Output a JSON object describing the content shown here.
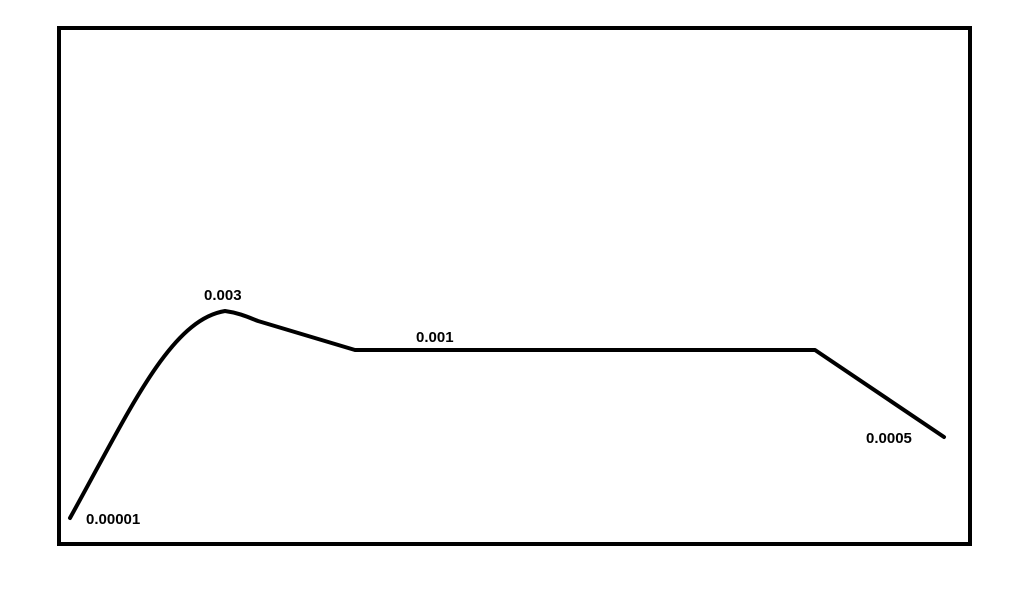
{
  "chart_data": {
    "type": "line",
    "title": "",
    "xlabel": "",
    "ylabel": "",
    "grid": false,
    "legend": "none",
    "line_color": "#000000",
    "frame_color": "#000000",
    "points": [
      {
        "label": "0.00001",
        "value": 1e-05
      },
      {
        "label": "0.003",
        "value": 0.003
      },
      {
        "label": "0.001",
        "value": 0.001
      },
      {
        "label": "0.001",
        "value": 0.001
      },
      {
        "label": "0.0005",
        "value": 0.0005
      }
    ],
    "data_labels": [
      "0.00001",
      "0.003",
      "0.001",
      "0.0005"
    ]
  }
}
